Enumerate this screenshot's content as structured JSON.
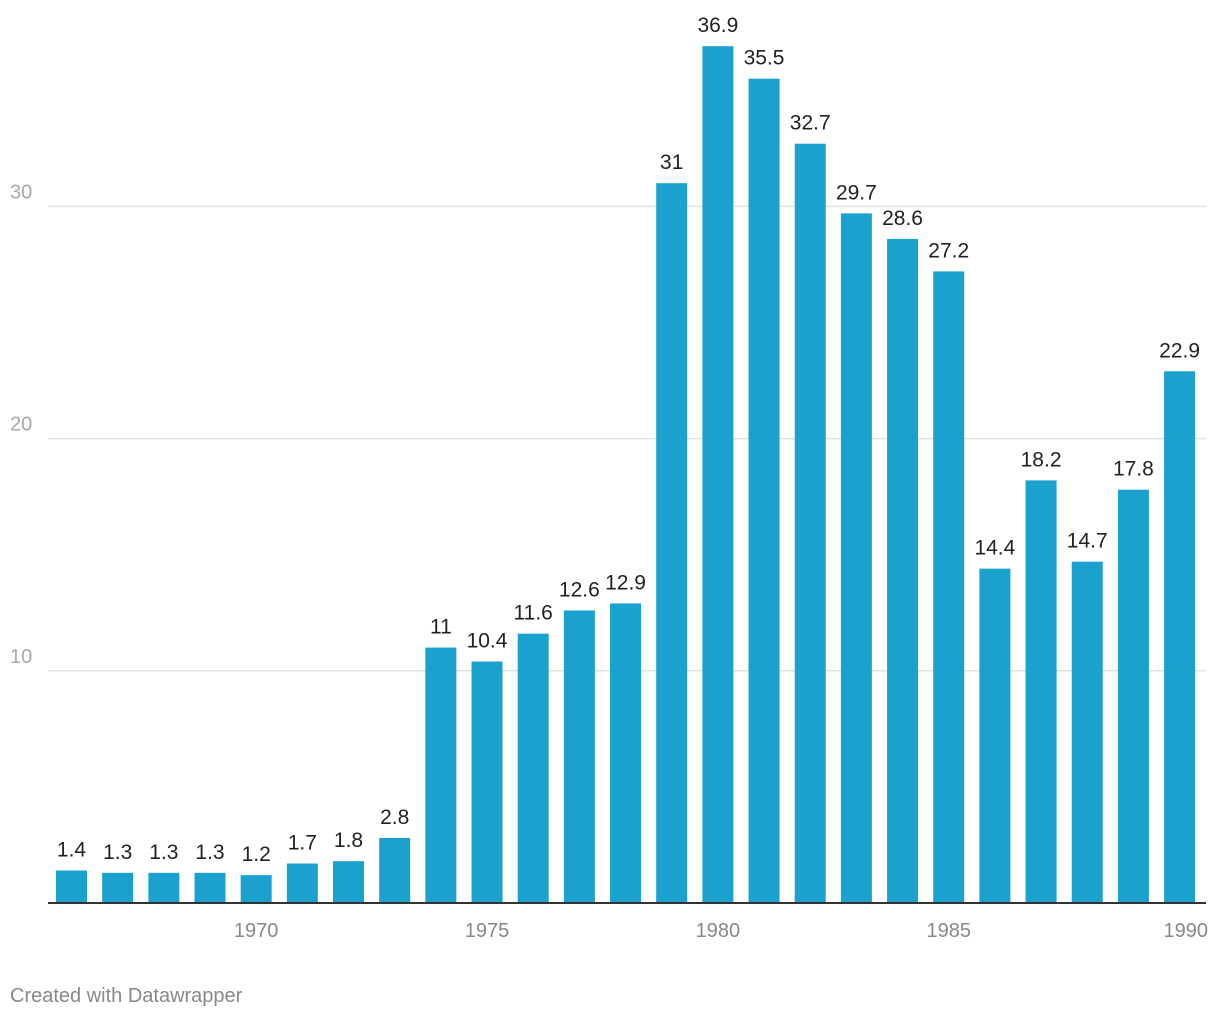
{
  "chart_data": {
    "type": "bar",
    "title": "",
    "xlabel": "",
    "ylabel": "",
    "categories": [
      "1966",
      "1967",
      "1968",
      "1969",
      "1970",
      "1971",
      "1972",
      "1973",
      "1974",
      "1975",
      "1976",
      "1977",
      "1978",
      "1979",
      "1980",
      "1981",
      "1982",
      "1983",
      "1984",
      "1985",
      "1986",
      "1987",
      "1988",
      "1989",
      "1990"
    ],
    "values": [
      1.4,
      1.3,
      1.3,
      1.3,
      1.2,
      1.7,
      1.8,
      2.8,
      11,
      10.4,
      11.6,
      12.6,
      12.9,
      31,
      36.9,
      35.5,
      32.7,
      29.7,
      28.6,
      27.2,
      14.4,
      18.2,
      14.7,
      17.8,
      22.9
    ],
    "value_labels": [
      "1.4",
      "1.3",
      "1.3",
      "1.3",
      "1.2",
      "1.7",
      "1.8",
      "2.8",
      "11",
      "10.4",
      "11.6",
      "12.6",
      "12.9",
      "31",
      "36.9",
      "35.5",
      "32.7",
      "29.7",
      "28.6",
      "27.2",
      "14.4",
      "18.2",
      "14.7",
      "17.8",
      "22.9"
    ],
    "ylim": [
      0,
      38
    ],
    "y_ticks": [
      10,
      20,
      30
    ],
    "y_tick_labels": [
      "10",
      "20",
      "30"
    ],
    "x_ticks": [
      "1970",
      "1975",
      "1980",
      "1985",
      "1990"
    ],
    "grid": true,
    "colors": {
      "bar": "#1ba1cd",
      "grid": "#e2e2e2",
      "axis": "#333333",
      "tick_label": "#a8a8a8",
      "x_tick_label": "#888888",
      "value_label": "#222222"
    }
  },
  "footer": {
    "credit": "Created with Datawrapper"
  }
}
